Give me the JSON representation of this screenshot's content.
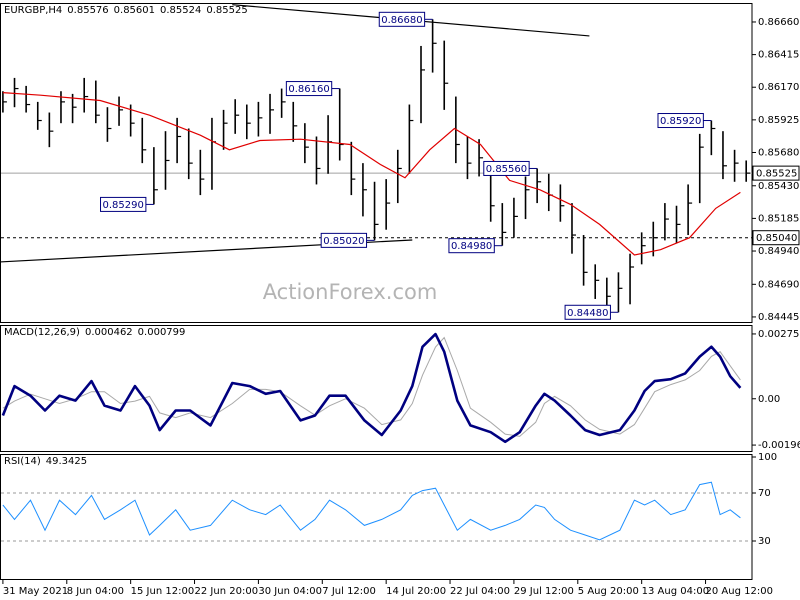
{
  "chart_data": [
    {
      "type": "ohlc",
      "symbol": "EURGBP,H4",
      "header_values": [
        0.85576,
        0.85601,
        0.85524,
        0.85525
      ],
      "watermark": "ActionForex.com",
      "color": "#000000",
      "x": [
        0,
        8,
        16,
        24,
        32,
        40,
        48,
        56,
        64,
        72,
        80,
        88,
        96,
        104,
        112,
        120,
        128,
        136,
        144,
        152,
        160,
        168,
        176,
        184,
        192,
        200,
        208,
        216,
        224,
        232,
        240,
        248,
        256,
        264,
        272,
        280,
        288,
        296,
        304,
        312,
        320,
        328,
        336,
        344,
        352,
        360,
        368,
        376,
        384,
        392,
        400,
        408,
        416,
        424,
        432,
        440,
        448,
        456,
        464,
        472,
        480,
        488,
        496,
        504,
        512
      ],
      "high": [
        0.8614,
        0.8624,
        0.8618,
        0.8606,
        0.8598,
        0.8614,
        0.8612,
        0.8624,
        0.8622,
        0.8602,
        0.861,
        0.8604,
        0.8594,
        0.8572,
        0.8584,
        0.8594,
        0.8586,
        0.857,
        0.8594,
        0.86,
        0.8608,
        0.8604,
        0.8606,
        0.8612,
        0.8616,
        0.8606,
        0.859,
        0.858,
        0.8596,
        0.8616,
        0.8576,
        0.856,
        0.8546,
        0.8548,
        0.857,
        0.8604,
        0.8648,
        0.8668,
        0.8652,
        0.861,
        0.858,
        0.8578,
        0.856,
        0.853,
        0.8534,
        0.855,
        0.8556,
        0.8552,
        0.8544,
        0.853,
        0.8506,
        0.8484,
        0.8474,
        0.8478,
        0.8492,
        0.8508,
        0.8516,
        0.853,
        0.8528,
        0.8544,
        0.8582,
        0.8592,
        0.8584,
        0.857,
        0.8562
      ],
      "low": [
        0.8598,
        0.8602,
        0.8598,
        0.8585,
        0.8572,
        0.859,
        0.859,
        0.8598,
        0.859,
        0.8576,
        0.8588,
        0.858,
        0.856,
        0.8529,
        0.854,
        0.856,
        0.8548,
        0.8536,
        0.854,
        0.857,
        0.8582,
        0.8578,
        0.858,
        0.8582,
        0.8594,
        0.8576,
        0.856,
        0.8544,
        0.8552,
        0.8562,
        0.8536,
        0.852,
        0.8502,
        0.851,
        0.853,
        0.8552,
        0.859,
        0.8628,
        0.86,
        0.856,
        0.8548,
        0.855,
        0.8516,
        0.8498,
        0.8504,
        0.8518,
        0.853,
        0.8524,
        0.8516,
        0.8492,
        0.8468,
        0.8458,
        0.845,
        0.8448,
        0.8454,
        0.8484,
        0.849,
        0.8502,
        0.85,
        0.8506,
        0.853,
        0.8566,
        0.8548,
        0.8546,
        0.8546
      ],
      "close": [
        0.8606,
        0.8616,
        0.8604,
        0.8592,
        0.8584,
        0.8606,
        0.8602,
        0.861,
        0.8596,
        0.8586,
        0.86,
        0.859,
        0.857,
        0.854,
        0.8562,
        0.858,
        0.856,
        0.8548,
        0.8576,
        0.859,
        0.8596,
        0.859,
        0.8594,
        0.86,
        0.8606,
        0.8588,
        0.8572,
        0.8556,
        0.8576,
        0.8574,
        0.8548,
        0.854,
        0.8514,
        0.853,
        0.8556,
        0.8592,
        0.863,
        0.865,
        0.862,
        0.8574,
        0.856,
        0.8564,
        0.8528,
        0.8508,
        0.852,
        0.854,
        0.8546,
        0.8536,
        0.8528,
        0.8506,
        0.8478,
        0.8472,
        0.846,
        0.8466,
        0.8482,
        0.8498,
        0.8504,
        0.8518,
        0.8514,
        0.853,
        0.8572,
        0.8586,
        0.8558,
        0.856,
        0.85525
      ],
      "ma": {
        "color": "#e00000",
        "x": [
          0,
          26,
          67,
          101,
          136,
          156,
          177,
          205,
          239,
          260,
          277,
          294,
          311,
          329,
          349,
          370,
          391,
          411,
          435,
          453,
          473,
          491,
          508
        ],
        "values": [
          0.8613,
          0.8611,
          0.8607,
          0.8596,
          0.8581,
          0.857,
          0.8577,
          0.8578,
          0.8574,
          0.8559,
          0.8549,
          0.857,
          0.8586,
          0.8574,
          0.8547,
          0.854,
          0.8529,
          0.8514,
          0.8491,
          0.8495,
          0.8504,
          0.8526,
          0.8538
        ]
      },
      "trendlines": [
        {
          "x": [
            158,
            404
          ],
          "y": [
            0.8679,
            0.86555
          ]
        },
        {
          "x": [
            -2,
            282
          ],
          "y": [
            0.84858,
            0.85023
          ]
        }
      ],
      "hlines": [
        {
          "value": 0.85525,
          "style": "solid",
          "color": "#a0a0a0"
        },
        {
          "value": 0.8504,
          "label": "0.85040",
          "style": "dashed",
          "color": "#000000"
        }
      ],
      "annotations": [
        {
          "value": 0.8668,
          "label": "0.86680",
          "x": 296
        },
        {
          "value": 0.8616,
          "label": "0.86160",
          "x": 232
        },
        {
          "value": 0.8529,
          "label": "0.85290",
          "x": 104
        },
        {
          "value": 0.8502,
          "label": "0.85020",
          "x": 256
        },
        {
          "value": 0.8556,
          "label": "0.85560",
          "x": 368
        },
        {
          "value": 0.8498,
          "label": "0.84980",
          "x": 344
        },
        {
          "value": 0.8448,
          "label": "0.84480",
          "x": 424
        },
        {
          "value": 0.8592,
          "label": "0.85920",
          "x": 488
        }
      ],
      "xlim": [
        -2,
        516
      ],
      "xticks": [
        {
          "value": 0,
          "label": "31 May 2021"
        },
        {
          "value": 44,
          "label": "8 Jun 04:00"
        },
        {
          "value": 88,
          "label": "15 Jun 12:00"
        },
        {
          "value": 132,
          "label": "22 Jun 20:00"
        },
        {
          "value": 176,
          "label": "30 Jun 04:00"
        },
        {
          "value": 220,
          "label": "7 Jul 12:00"
        },
        {
          "value": 264,
          "label": "14 Jul 20:00"
        },
        {
          "value": 308,
          "label": "22 Jul 04:00"
        },
        {
          "value": 352,
          "label": "29 Jul 12:00"
        },
        {
          "value": 396,
          "label": "5 Aug 20:00"
        },
        {
          "value": 440,
          "label": "13 Aug 04:00"
        },
        {
          "value": 484,
          "label": "20 Aug 12:00"
        }
      ],
      "ylim": [
        0.84407,
        0.86795
      ],
      "yticks": [
        {
          "value": 0.8666,
          "label": "0.86660"
        },
        0.86415,
        {
          "value": 0.8617,
          "label": "0.86170"
        },
        0.85925,
        {
          "value": 0.8568,
          "label": "0.85680"
        },
        {
          "value": 0.8543,
          "label": "0.85430"
        },
        0.85185,
        {
          "value": 0.8494,
          "label": "0.84940"
        },
        {
          "value": 0.8469,
          "label": "0.84690"
        },
        0.84445
      ]
    },
    {
      "type": "macd",
      "title": "MACD(12,26,9)",
      "header_values": [
        0.000462,
        0.000799
      ],
      "x": [
        0,
        8,
        19,
        29,
        39,
        50,
        61,
        70,
        81,
        91,
        101,
        108,
        119,
        129,
        143,
        158,
        170,
        181,
        191,
        205,
        215,
        225,
        236,
        249,
        261,
        274,
        282,
        289,
        298,
        304,
        313,
        322,
        336,
        346,
        356,
        367,
        373,
        380,
        391,
        401,
        411,
        425,
        435,
        442,
        449,
        460,
        470,
        480,
        488,
        494,
        501,
        508
      ],
      "macd": {
        "color": "#000080",
        "values": [
          -0.00071,
          0.00054,
          0.00013,
          -0.0005,
          0.00013,
          -8e-05,
          0.00075,
          -0.00029,
          -0.0005,
          0.00054,
          -0.00029,
          -0.00133,
          -0.0005,
          -0.0005,
          -0.00113,
          0.00067,
          0.00054,
          0.00021,
          0.00033,
          -0.00092,
          -0.00071,
          0.00013,
          0.00013,
          -0.00092,
          -0.00154,
          -0.0005,
          0.00054,
          0.00221,
          0.00275,
          0.002,
          -8e-05,
          -0.00113,
          -0.00142,
          -0.00183,
          -0.00142,
          -0.00029,
          0.00021,
          -8e-05,
          -0.00071,
          -0.00133,
          -0.00154,
          -0.00133,
          -0.0005,
          0.00033,
          0.00075,
          0.00083,
          0.00108,
          0.00179,
          0.00221,
          0.00179,
          0.00096,
          0.00046
        ]
      },
      "signal": {
        "color": "#a9a9a9",
        "values": [
          -0.0004,
          -0.0001,
          0.0002,
          0,
          -0.0002,
          0,
          0.0003,
          0.0003,
          -0.0002,
          -0.0001,
          0.0001,
          -0.0006,
          -0.0008,
          -0.0006,
          -0.0008,
          -0.0002,
          0.0004,
          0.0004,
          0.0003,
          -0.0003,
          -0.0007,
          -0.0003,
          0,
          -0.0004,
          -0.0011,
          -0.0009,
          -0.0002,
          0.001,
          0.0022,
          0.0026,
          0.0012,
          -0.0004,
          -0.001,
          -0.0015,
          -0.0016,
          -0.001,
          -0.0002,
          0.0001,
          -0.0003,
          -0.0009,
          -0.0013,
          -0.0015,
          -0.0011,
          -0.0004,
          0.0003,
          0.0006,
          0.0008,
          0.0012,
          0.0018,
          0.002,
          0.0014,
          0.0008
        ]
      },
      "ylim": [
        -0.00222,
        0.00305
      ],
      "yticks": [
        0.002755,
        {
          "value": 0,
          "label": "0.00"
        },
        -0.001968
      ]
    },
    {
      "type": "rsi",
      "title": "RSI(14)",
      "header_values": [
        49.3425
      ],
      "color": "#1e90ff",
      "x": [
        0,
        8,
        19,
        29,
        39,
        50,
        61,
        70,
        81,
        91,
        101,
        108,
        119,
        129,
        143,
        158,
        170,
        181,
        191,
        205,
        215,
        225,
        236,
        249,
        261,
        274,
        282,
        289,
        298,
        304,
        313,
        322,
        336,
        346,
        356,
        367,
        373,
        380,
        391,
        401,
        411,
        425,
        435,
        442,
        449,
        460,
        470,
        480,
        488,
        494,
        501,
        508
      ],
      "values": [
        60,
        48,
        64,
        39,
        64,
        52,
        68,
        48,
        56,
        64,
        35,
        43,
        56,
        39,
        43,
        64,
        56,
        52,
        60,
        39,
        48,
        64,
        56,
        43,
        48,
        56,
        68,
        72,
        74,
        60,
        39,
        48,
        39,
        43,
        48,
        60,
        58,
        48,
        39,
        35,
        31,
        39,
        64,
        60,
        64,
        52,
        56,
        77,
        79,
        52,
        56,
        49.3
      ],
      "levels": [
        70,
        30
      ],
      "ylim": [
        0,
        100
      ],
      "yticks": [
        100,
        70,
        30
      ]
    }
  ]
}
